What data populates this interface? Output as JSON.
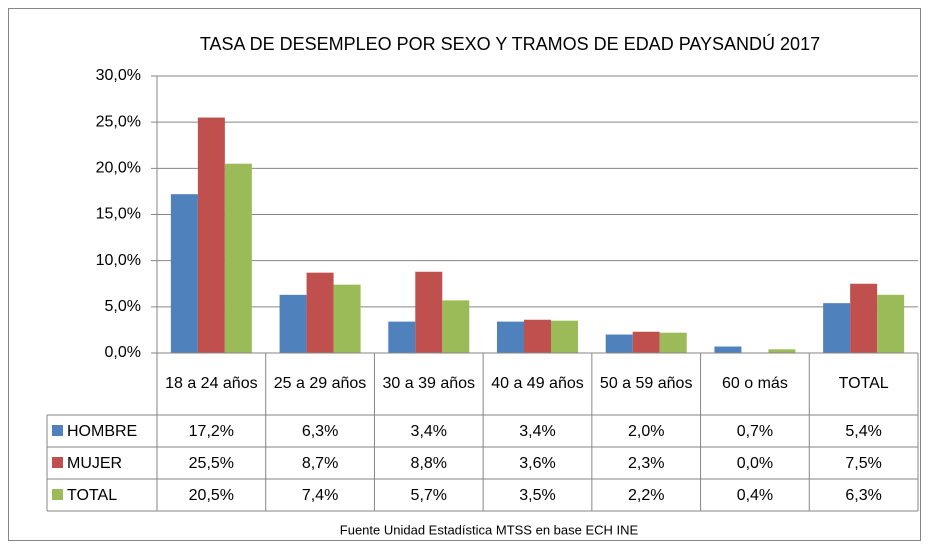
{
  "chart_data": {
    "type": "bar",
    "title": "TASA DE DESEMPLEO POR SEXO Y TRAMOS DE EDAD PAYSANDÚ 2017",
    "categories": [
      "18 a 24 años",
      "25 a 29 años",
      "30 a 39 años",
      "40 a 49 años",
      "50 a 59 años",
      "60 o más",
      "TOTAL"
    ],
    "series": [
      {
        "name": "HOMBRE",
        "color": "#4f81bd",
        "values": [
          17.2,
          6.3,
          3.4,
          3.4,
          2.0,
          0.7,
          5.4
        ],
        "value_labels": [
          "17,2%",
          "6,3%",
          "3,4%",
          "3,4%",
          "2,0%",
          "0,7%",
          "5,4%"
        ]
      },
      {
        "name": "MUJER",
        "color": "#c0504d",
        "values": [
          25.5,
          8.7,
          8.8,
          3.6,
          2.3,
          0.0,
          7.5
        ],
        "value_labels": [
          "25,5%",
          "8,7%",
          "8,8%",
          "3,6%",
          "2,3%",
          "0,0%",
          "7,5%"
        ]
      },
      {
        "name": "TOTAL",
        "color": "#9bbb59",
        "values": [
          20.5,
          7.4,
          5.7,
          3.5,
          2.2,
          0.4,
          6.3
        ],
        "value_labels": [
          "20,5%",
          "7,4%",
          "5,7%",
          "3,5%",
          "2,2%",
          "0,4%",
          "6,3%"
        ]
      }
    ],
    "ylim": [
      0,
      30
    ],
    "yticks": [
      {
        "value": 0,
        "label": "0,0%"
      },
      {
        "value": 5,
        "label": "5,0%"
      },
      {
        "value": 10,
        "label": "10,0%"
      },
      {
        "value": 15,
        "label": "15,0%"
      },
      {
        "value": 20,
        "label": "20,0%"
      },
      {
        "value": 25,
        "label": "25,0%"
      },
      {
        "value": 30,
        "label": "30,0%"
      }
    ],
    "grid": true,
    "source": "Fuente Unidad Estadística MTSS en base ECH INE"
  }
}
